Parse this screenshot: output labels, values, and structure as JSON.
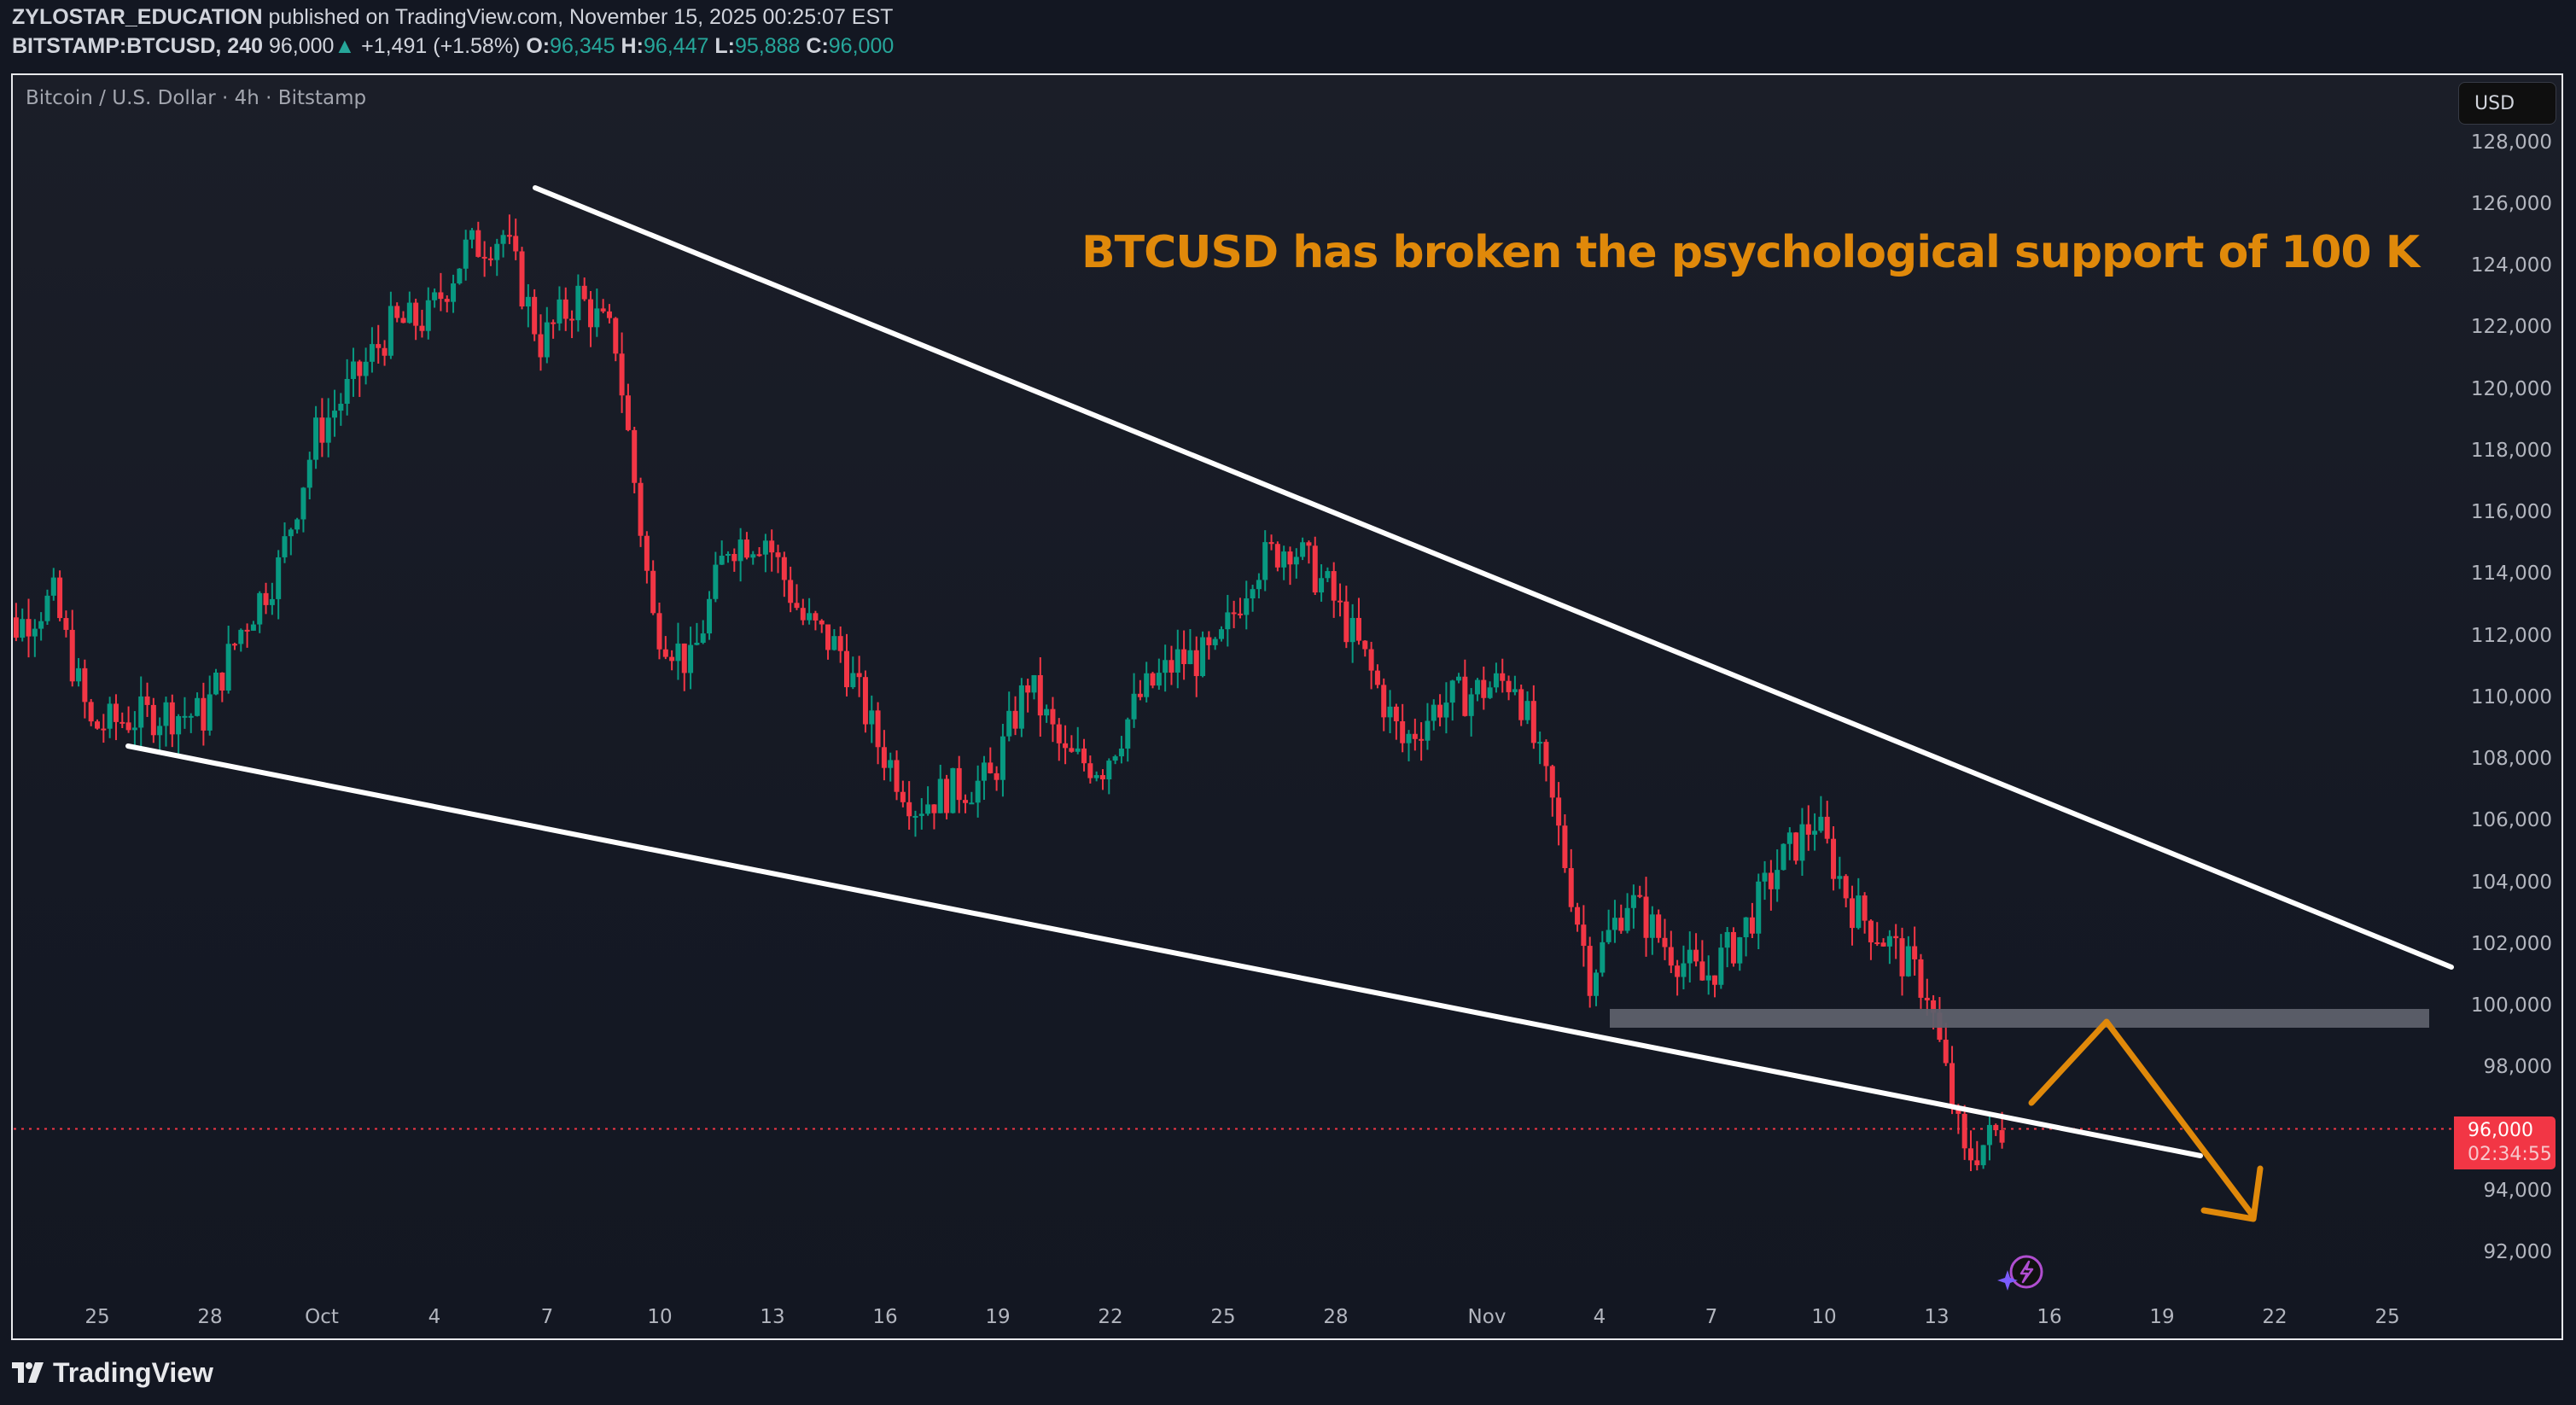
{
  "header": {
    "author": "ZYLOSTAR_EDUCATION",
    "published": "published on TradingView.com, November 15, 2025 00:25:07 EST",
    "symbol": "BITSTAMP:BTCUSD, 240",
    "last": "96,000",
    "change": "+1,491 (+1.58%)",
    "o_label": "O:",
    "o": "96,345",
    "h_label": "H:",
    "h": "96,447",
    "l_label": "L:",
    "l": "95,888",
    "c_label": "C:",
    "c": "96,000"
  },
  "legend": "Bitcoin / U.S. Dollar · 4h · Bitstamp",
  "currency_button": "USD",
  "price_tag": {
    "price": "96,000",
    "countdown": "02:34:55",
    "color": "#f23645"
  },
  "annotation": "BTCUSD has broken the psychological support of 100 K",
  "brand": "TradingView",
  "colors": {
    "up": "#089981",
    "down": "#f23645",
    "annotation": "#e0890a",
    "trendline": "#ffffff",
    "zone": "#5d606b",
    "background": "#131722"
  },
  "chart_data": {
    "type": "candlestick",
    "title": "Bitcoin / U.S. Dollar · 4h · Bitstamp",
    "xlabel": "",
    "ylabel": "USD",
    "ylim": [
      91000,
      129500
    ],
    "grid": false,
    "y_ticks": [
      "128,000",
      "126,000",
      "124,000",
      "122,000",
      "120,000",
      "118,000",
      "116,000",
      "114,000",
      "112,000",
      "110,000",
      "108,000",
      "106,000",
      "104,000",
      "102,000",
      "100,000",
      "98,000",
      "96,000",
      "94,000",
      "92,000"
    ],
    "x_ticks": [
      "25",
      "28",
      "Oct",
      "4",
      "7",
      "10",
      "13",
      "16",
      "19",
      "22",
      "25",
      "28",
      "Nov",
      "4",
      "7",
      "10",
      "13",
      "16",
      "19",
      "22",
      "25"
    ],
    "daily_approx_close": [
      {
        "date": "Sep 22",
        "close": 112700
      },
      {
        "date": "Sep 23",
        "close": 112300
      },
      {
        "date": "Sep 24",
        "close": 113200
      },
      {
        "date": "Sep 25",
        "close": 109000
      },
      {
        "date": "Sep 26",
        "close": 109300
      },
      {
        "date": "Sep 27",
        "close": 109500
      },
      {
        "date": "Sep 28",
        "close": 109400
      },
      {
        "date": "Sep 29",
        "close": 112200
      },
      {
        "date": "Sep 30",
        "close": 114200
      },
      {
        "date": "Oct 1",
        "close": 118500
      },
      {
        "date": "Oct 2",
        "close": 120200
      },
      {
        "date": "Oct 3",
        "close": 122000
      },
      {
        "date": "Oct 4",
        "close": 122300
      },
      {
        "date": "Oct 5",
        "close": 124500
      },
      {
        "date": "Oct 6",
        "close": 125000
      },
      {
        "date": "Oct 7",
        "close": 121500
      },
      {
        "date": "Oct 8",
        "close": 123000
      },
      {
        "date": "Oct 9",
        "close": 121500
      },
      {
        "date": "Oct 10",
        "close": 112500
      },
      {
        "date": "Oct 11",
        "close": 111000
      },
      {
        "date": "Oct 12",
        "close": 115000
      },
      {
        "date": "Oct 13",
        "close": 115200
      },
      {
        "date": "Oct 14",
        "close": 112500
      },
      {
        "date": "Oct 15",
        "close": 111500
      },
      {
        "date": "Oct 16",
        "close": 108500
      },
      {
        "date": "Oct 17",
        "close": 106500
      },
      {
        "date": "Oct 18",
        "close": 107000
      },
      {
        "date": "Oct 19",
        "close": 107300
      },
      {
        "date": "Oct 20",
        "close": 110500
      },
      {
        "date": "Oct 21",
        "close": 108000
      },
      {
        "date": "Oct 22",
        "close": 107800
      },
      {
        "date": "Oct 23",
        "close": 110000
      },
      {
        "date": "Oct 24",
        "close": 111200
      },
      {
        "date": "Oct 25",
        "close": 111300
      },
      {
        "date": "Oct 26",
        "close": 114200
      },
      {
        "date": "Oct 27",
        "close": 115000
      },
      {
        "date": "Oct 28",
        "close": 113500
      },
      {
        "date": "Oct 29",
        "close": 111200
      },
      {
        "date": "Oct 30",
        "close": 108500
      },
      {
        "date": "Oct 31",
        "close": 109800
      },
      {
        "date": "Nov 1",
        "close": 110200
      },
      {
        "date": "Nov 2",
        "close": 110600
      },
      {
        "date": "Nov 3",
        "close": 106500
      },
      {
        "date": "Nov 4",
        "close": 101000
      },
      {
        "date": "Nov 5",
        "close": 103500
      },
      {
        "date": "Nov 6",
        "close": 102000
      },
      {
        "date": "Nov 7",
        "close": 100800
      },
      {
        "date": "Nov 8",
        "close": 102200
      },
      {
        "date": "Nov 9",
        "close": 104500
      },
      {
        "date": "Nov 10",
        "close": 106000
      },
      {
        "date": "Nov 11",
        "close": 103200
      },
      {
        "date": "Nov 12",
        "close": 102000
      },
      {
        "date": "Nov 13",
        "close": 100500
      },
      {
        "date": "Nov 14",
        "close": 95000
      },
      {
        "date": "Nov 15",
        "close": 96000
      }
    ],
    "extremes": {
      "high": {
        "date": "Oct 6",
        "price": 126200
      },
      "low": {
        "date": "Nov 14",
        "price": 94000
      }
    },
    "last_price": 96000,
    "drawings": {
      "upper_trendline": {
        "from": {
          "date": "Oct 6",
          "price": 126500
        },
        "to": {
          "date": "Nov 25",
          "price": 101500
        }
      },
      "lower_trendline": {
        "from": {
          "date": "Sep 26",
          "price": 108500
        },
        "to": {
          "date": "Nov 20",
          "price": 95200
        }
      },
      "support_zone": {
        "from": "Nov 3",
        "to": "Nov 25",
        "low": 99400,
        "high": 100000
      },
      "projection_arrow": [
        {
          "date": "Nov 15",
          "price": 96600
        },
        {
          "date": "Nov 17",
          "price": 99600
        },
        {
          "date": "Nov 21",
          "price": 93000
        }
      ],
      "text": "BTCUSD has broken the psychological support of 100 K"
    }
  }
}
